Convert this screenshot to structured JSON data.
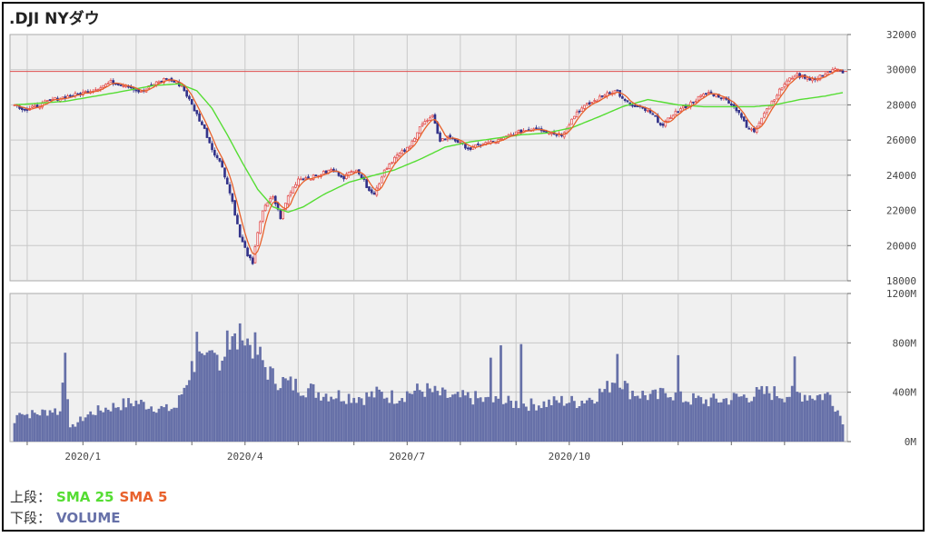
{
  "title": ".DJI NYダウ",
  "legend": {
    "upper_label": "上段：",
    "lower_label": "下段：",
    "upper_items": [
      {
        "name": "SMA 25",
        "color": "#55dd33"
      },
      {
        "name": "SMA 5",
        "color": "#e8612c"
      }
    ],
    "lower_items": [
      {
        "name": "VOLUME",
        "color": "#6670a8"
      }
    ]
  },
  "colors": {
    "panel_bg": "#f0f0f0",
    "grid": "#c8c8c8",
    "up_candle": "#e04040",
    "down_candle": "#33338a",
    "sma25": "#55dd33",
    "sma5": "#e8612c",
    "volume": "#6670a8",
    "ref_line": "#e05050"
  },
  "chart_data": [
    {
      "type": "candlestick",
      "panel": "price",
      "ylim": [
        18000,
        32000
      ],
      "yticks": [
        "32000",
        "30000",
        "28000",
        "26000",
        "24000",
        "22000",
        "20000",
        "18000"
      ],
      "ytick_values": [
        32000,
        30000,
        28000,
        26000,
        24000,
        22000,
        20000,
        18000
      ],
      "xticks": [
        "2020/1",
        "2020/4",
        "2020/7",
        "2020/10"
      ],
      "reference_line": 29900,
      "grid": true,
      "close_keypoints": [
        [
          0,
          28000
        ],
        [
          5,
          27700
        ],
        [
          15,
          28300
        ],
        [
          25,
          28600
        ],
        [
          32,
          28900
        ],
        [
          38,
          29300
        ],
        [
          45,
          29100
        ],
        [
          50,
          28700
        ],
        [
          55,
          29200
        ],
        [
          60,
          29500
        ],
        [
          63,
          29300
        ],
        [
          66,
          29100
        ],
        [
          70,
          28000
        ],
        [
          75,
          26600
        ],
        [
          78,
          25500
        ],
        [
          82,
          24500
        ],
        [
          86,
          22500
        ],
        [
          89,
          20500
        ],
        [
          92,
          19500
        ],
        [
          94,
          18900
        ],
        [
          96,
          20800
        ],
        [
          98,
          22000
        ],
        [
          102,
          22800
        ],
        [
          105,
          21600
        ],
        [
          108,
          22800
        ],
        [
          112,
          23800
        ],
        [
          118,
          23900
        ],
        [
          125,
          24300
        ],
        [
          130,
          23900
        ],
        [
          135,
          24400
        ],
        [
          139,
          23400
        ],
        [
          142,
          22900
        ],
        [
          146,
          24300
        ],
        [
          150,
          25000
        ],
        [
          156,
          25600
        ],
        [
          160,
          26800
        ],
        [
          165,
          27300
        ],
        [
          168,
          26000
        ],
        [
          172,
          26200
        ],
        [
          176,
          25800
        ],
        [
          180,
          25500
        ],
        [
          185,
          25800
        ],
        [
          190,
          25900
        ],
        [
          196,
          26300
        ],
        [
          200,
          26500
        ],
        [
          206,
          26700
        ],
        [
          212,
          26400
        ],
        [
          216,
          26300
        ],
        [
          222,
          27600
        ],
        [
          226,
          28000
        ],
        [
          230,
          28300
        ],
        [
          234,
          28700
        ],
        [
          238,
          28800
        ],
        [
          240,
          28300
        ],
        [
          244,
          27900
        ],
        [
          248,
          27800
        ],
        [
          252,
          27400
        ],
        [
          256,
          26800
        ],
        [
          260,
          27500
        ],
        [
          266,
          28000
        ],
        [
          270,
          28400
        ],
        [
          274,
          28700
        ],
        [
          278,
          28500
        ],
        [
          282,
          28200
        ],
        [
          286,
          27600
        ],
        [
          289,
          26700
        ],
        [
          292,
          26500
        ],
        [
          296,
          27600
        ],
        [
          300,
          28400
        ],
        [
          304,
          29200
        ],
        [
          308,
          29700
        ],
        [
          312,
          29600
        ],
        [
          316,
          29400
        ],
        [
          320,
          29800
        ],
        [
          324,
          30000
        ],
        [
          327,
          29900
        ]
      ],
      "sma25_keypoints": [
        [
          0,
          28000
        ],
        [
          20,
          28200
        ],
        [
          40,
          28700
        ],
        [
          55,
          29100
        ],
        [
          65,
          29200
        ],
        [
          72,
          28800
        ],
        [
          78,
          27800
        ],
        [
          84,
          26300
        ],
        [
          90,
          24700
        ],
        [
          96,
          23200
        ],
        [
          102,
          22200
        ],
        [
          108,
          21900
        ],
        [
          114,
          22200
        ],
        [
          122,
          22900
        ],
        [
          132,
          23600
        ],
        [
          142,
          24000
        ],
        [
          150,
          24300
        ],
        [
          160,
          24900
        ],
        [
          170,
          25600
        ],
        [
          180,
          25900
        ],
        [
          190,
          26100
        ],
        [
          200,
          26300
        ],
        [
          210,
          26400
        ],
        [
          220,
          26700
        ],
        [
          232,
          27400
        ],
        [
          240,
          27900
        ],
        [
          250,
          28300
        ],
        [
          262,
          28000
        ],
        [
          272,
          27900
        ],
        [
          282,
          27900
        ],
        [
          292,
          27900
        ],
        [
          300,
          28000
        ],
        [
          310,
          28300
        ],
        [
          320,
          28500
        ],
        [
          327,
          28700
        ]
      ]
    },
    {
      "type": "bar",
      "panel": "volume",
      "ylim": [
        0,
        1200
      ],
      "yticks": [
        "1200M",
        "800M",
        "400M",
        "0M"
      ],
      "ytick_values": [
        1200,
        800,
        400,
        0
      ],
      "grid": true,
      "series_name": "VOLUME",
      "keypoints": [
        [
          0,
          150
        ],
        [
          2,
          270
        ],
        [
          4,
          220
        ],
        [
          10,
          230
        ],
        [
          15,
          260
        ],
        [
          18,
          240
        ],
        [
          20,
          720
        ],
        [
          22,
          100
        ],
        [
          25,
          160
        ],
        [
          30,
          230
        ],
        [
          36,
          270
        ],
        [
          42,
          300
        ],
        [
          48,
          320
        ],
        [
          54,
          290
        ],
        [
          60,
          260
        ],
        [
          64,
          280
        ],
        [
          68,
          500
        ],
        [
          72,
          700
        ],
        [
          75,
          600
        ],
        [
          78,
          680
        ],
        [
          82,
          700
        ],
        [
          86,
          800
        ],
        [
          90,
          830
        ],
        [
          94,
          790
        ],
        [
          98,
          640
        ],
        [
          102,
          520
        ],
        [
          108,
          470
        ],
        [
          114,
          440
        ],
        [
          120,
          400
        ],
        [
          126,
          380
        ],
        [
          132,
          370
        ],
        [
          138,
          360
        ],
        [
          144,
          390
        ],
        [
          150,
          360
        ],
        [
          156,
          400
        ],
        [
          162,
          420
        ],
        [
          168,
          380
        ],
        [
          174,
          350
        ],
        [
          180,
          360
        ],
        [
          186,
          330
        ],
        [
          192,
          320
        ],
        [
          198,
          310
        ],
        [
          204,
          300
        ],
        [
          210,
          310
        ],
        [
          216,
          330
        ],
        [
          222,
          320
        ],
        [
          228,
          360
        ],
        [
          234,
          430
        ],
        [
          238,
          560
        ],
        [
          242,
          420
        ],
        [
          248,
          380
        ],
        [
          254,
          360
        ],
        [
          258,
          420
        ],
        [
          262,
          350
        ],
        [
          268,
          340
        ],
        [
          274,
          330
        ],
        [
          280,
          340
        ],
        [
          286,
          360
        ],
        [
          292,
          380
        ],
        [
          298,
          400
        ],
        [
          304,
          380
        ],
        [
          310,
          390
        ],
        [
          316,
          370
        ],
        [
          322,
          380
        ],
        [
          327,
          170
        ]
      ],
      "spikes": [
        [
          20,
          720
        ],
        [
          72,
          890
        ],
        [
          84,
          900
        ],
        [
          90,
          820
        ],
        [
          188,
          680
        ],
        [
          192,
          780
        ],
        [
          200,
          790
        ],
        [
          238,
          710
        ],
        [
          262,
          700
        ],
        [
          308,
          690
        ]
      ]
    }
  ]
}
